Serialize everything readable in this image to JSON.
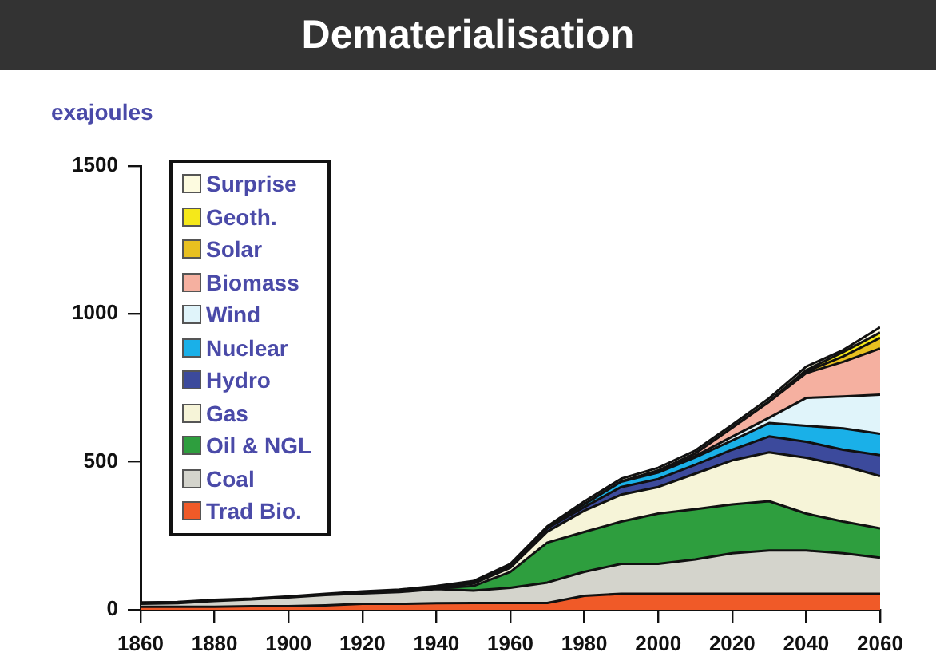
{
  "chart_data": {
    "type": "area",
    "title": "Dematerialisation",
    "ylabel": "exajoules",
    "stacked": true,
    "legend": "top left",
    "grid": false,
    "marker": "none",
    "x": [
      1860,
      1870,
      1880,
      1890,
      1900,
      1910,
      1920,
      1930,
      1940,
      1950,
      1960,
      1970,
      1980,
      1990,
      2000,
      2010,
      2020,
      2030,
      2040,
      2050,
      2060
    ],
    "xlim": [
      1860,
      2060
    ],
    "xticks": [
      1860,
      1880,
      1900,
      1920,
      1940,
      1960,
      1980,
      2000,
      2020,
      2040,
      2060
    ],
    "ylim": [
      0,
      1500
    ],
    "yticks": [
      0,
      500,
      1000,
      1500
    ],
    "series": [
      {
        "name": "Trad Bio.",
        "color": "#f05a28",
        "values": [
          10,
          10,
          10,
          12,
          12,
          15,
          20,
          20,
          22,
          23,
          23,
          23,
          47,
          54,
          54,
          54,
          54,
          54,
          54,
          54,
          54
        ]
      },
      {
        "name": "Coal",
        "color": "#d4d4cc",
        "values": [
          10,
          12,
          20,
          23,
          30,
          35,
          35,
          40,
          48,
          42,
          51,
          69,
          81,
          101,
          101,
          116,
          137,
          146,
          146,
          137,
          122
        ]
      },
      {
        "name": "Oil & NGL",
        "color": "#2e9e3e",
        "values": [
          0,
          0,
          0,
          0,
          0,
          0,
          1,
          2,
          2,
          15,
          54,
          135,
          135,
          143,
          170,
          170,
          165,
          167,
          125,
          107,
          99
        ]
      },
      {
        "name": "Gas",
        "color": "#f6f4d8",
        "values": [
          0,
          0,
          0,
          0,
          0,
          0,
          1,
          1,
          2,
          8,
          14,
          37,
          72,
          91,
          90,
          120,
          149,
          165,
          189,
          189,
          177
        ]
      },
      {
        "name": "Hydro",
        "color": "#3c4a9c",
        "values": [
          0,
          0,
          0,
          0,
          0,
          0,
          1,
          2,
          2,
          4,
          8,
          11,
          12,
          26,
          27,
          30,
          36,
          54,
          54,
          54,
          71
        ]
      },
      {
        "name": "Nuclear",
        "color": "#1ab0e8",
        "values": [
          0,
          0,
          0,
          0,
          0,
          0,
          0,
          0,
          0,
          0,
          0,
          3,
          9,
          18,
          22,
          25,
          31,
          45,
          54,
          72,
          72
        ]
      },
      {
        "name": "Wind",
        "color": "#e0f4fa",
        "values": [
          0,
          0,
          0,
          0,
          0,
          0,
          0,
          0,
          0,
          0,
          0,
          0,
          0,
          0,
          2,
          5,
          13,
          18,
          94,
          108,
          132
        ]
      },
      {
        "name": "Biomass",
        "color": "#f5b0a0",
        "values": [
          0,
          0,
          0,
          0,
          0,
          0,
          0,
          0,
          0,
          0,
          0,
          0,
          0,
          0,
          4,
          8,
          30,
          54,
          84,
          117,
          156
        ]
      },
      {
        "name": "Solar",
        "color": "#e8c020",
        "values": [
          0,
          0,
          0,
          0,
          0,
          0,
          0,
          0,
          0,
          0,
          0,
          0,
          0,
          0,
          0,
          0,
          0,
          0,
          5,
          18,
          36
        ]
      },
      {
        "name": "Geoth.",
        "color": "#f5e81a",
        "values": [
          0,
          0,
          0,
          0,
          0,
          0,
          0,
          0,
          0,
          0,
          0,
          0,
          0,
          0,
          0,
          0,
          0,
          2,
          5,
          15,
          18
        ]
      },
      {
        "name": "Surprise",
        "color": "#fdfbe0",
        "values": [
          5,
          4,
          4,
          3,
          3,
          4,
          4,
          3,
          4,
          5,
          5,
          4,
          10,
          10,
          10,
          10,
          10,
          10,
          12,
          7,
          18
        ]
      }
    ]
  }
}
